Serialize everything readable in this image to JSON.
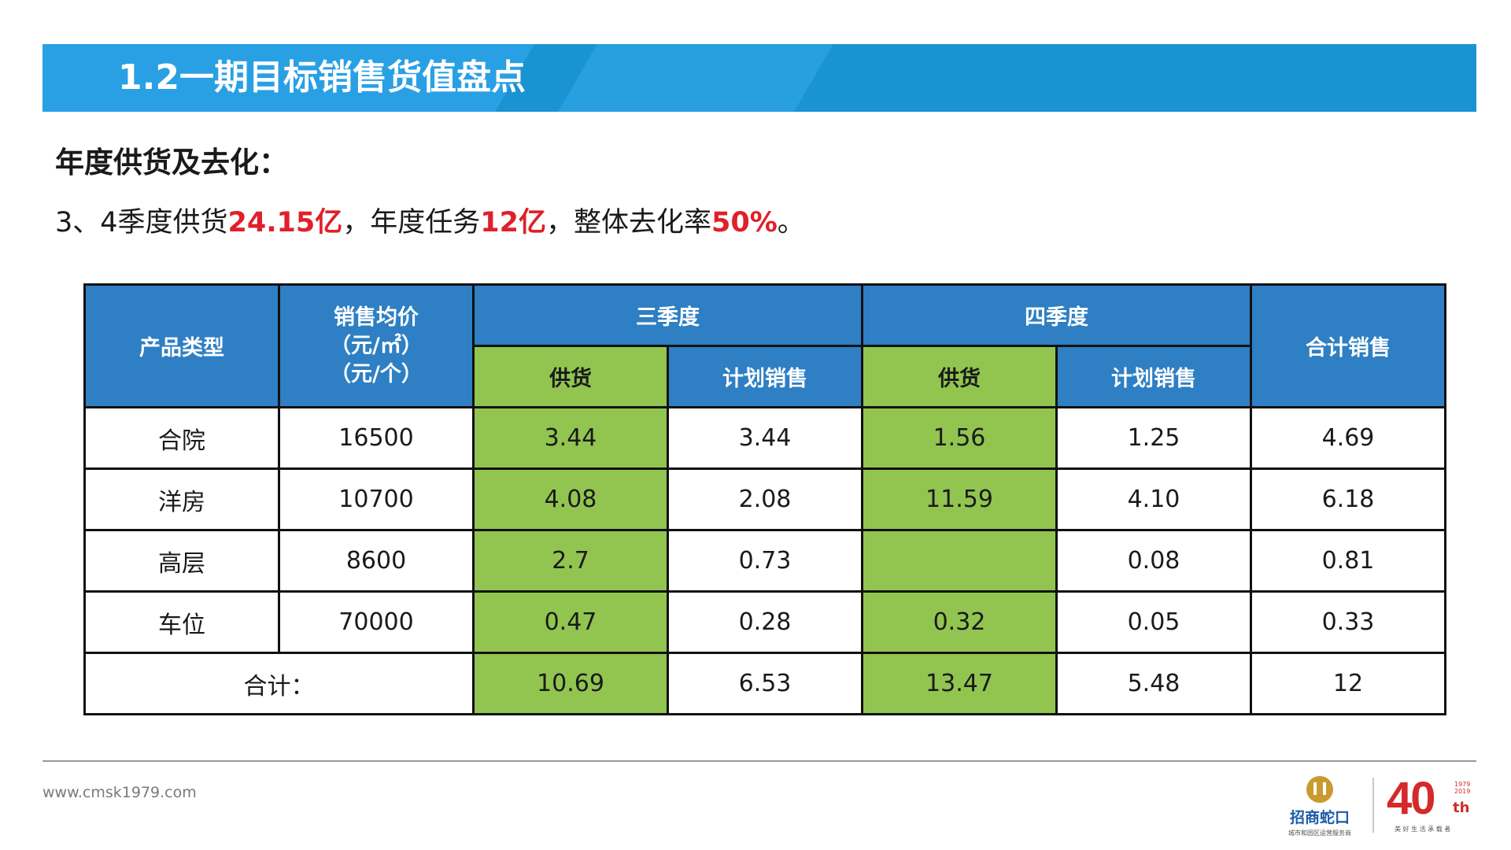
{
  "header": {
    "title": "1.2一期目标销售货值盘点"
  },
  "section": {
    "heading": "年度供货及去化："
  },
  "summary": {
    "prefix": "3、4季度供货",
    "supply": "24.15亿",
    "mid": "，年度任务",
    "task": "12亿",
    "mid2": "，整体去化率",
    "rate": "50%",
    "suffix": "。"
  },
  "table": {
    "col_product": "产品类型",
    "col_price": [
      "销售均价",
      "（元/㎡）",
      "（元/个）"
    ],
    "q3": "三季度",
    "q4": "四季度",
    "col_total": "合计销售",
    "sub_supply": "供货",
    "sub_plan": "计划销售",
    "rows": [
      {
        "type": "合院",
        "price": "16500",
        "q3_supply": "3.44",
        "q3_plan": "3.44",
        "q4_supply": "1.56",
        "q4_plan": "1.25",
        "total": "4.69"
      },
      {
        "type": "洋房",
        "price": "10700",
        "q3_supply": "4.08",
        "q3_plan": "2.08",
        "q4_supply": "11.59",
        "q4_plan": "4.10",
        "total": "6.18"
      },
      {
        "type": "高层",
        "price": "8600",
        "q3_supply": "2.7",
        "q3_plan": "0.73",
        "q4_supply": "",
        "q4_plan": "0.08",
        "total": "0.81"
      },
      {
        "type": "车位",
        "price": "70000",
        "q3_supply": "0.47",
        "q3_plan": "0.28",
        "q4_supply": "0.32",
        "q4_plan": "0.05",
        "total": "0.33"
      }
    ],
    "sum": {
      "label": "合计：",
      "q3_supply": "10.69",
      "q3_plan": "6.53",
      "q4_supply": "13.47",
      "q4_plan": "5.48",
      "total": "12"
    }
  },
  "footer": {
    "website": "www.cmsk1979.com",
    "brand_name": "招商蛇口",
    "brand_sub": "城市和园区运营服务商",
    "anniv_number": "40",
    "anniv_suffix": "th",
    "anniv_years": [
      "1979",
      "2019"
    ],
    "anniv_slogan": "美 好 生 活 承 载 者"
  },
  "colors": {
    "title_bar": "#1a93d3",
    "header_blue": "#2e7fc3",
    "supply_green": "#92c550",
    "highlight_red": "#e0202a"
  }
}
